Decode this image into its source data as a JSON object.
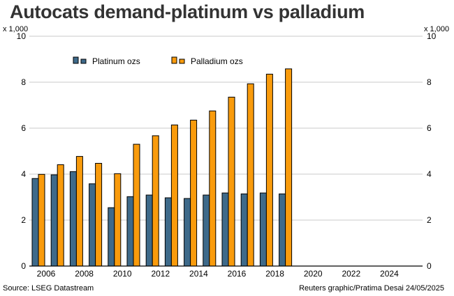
{
  "chart_data": {
    "type": "bar",
    "title": "Autocats demand-platinum vs palladium",
    "y_unit_left": "x 1,000",
    "y_unit_right": "x 1,000",
    "ylim": [
      0,
      10
    ],
    "yticks": [
      0,
      2,
      4,
      6,
      8,
      10
    ],
    "xlim": [
      2005,
      2025
    ],
    "xticks": [
      "2006",
      "2008",
      "2010",
      "2012",
      "2014",
      "2016",
      "2018",
      "2020",
      "2022",
      "2024"
    ],
    "categories": [
      "2005",
      "2006",
      "2007",
      "2008",
      "2009",
      "2010",
      "2011",
      "2012",
      "2013",
      "2014",
      "2015",
      "2016",
      "2017",
      "2018"
    ],
    "series": [
      {
        "name": "Platinum ozs",
        "color": "#3e6a8a",
        "values": [
          3.81,
          3.97,
          4.11,
          3.58,
          2.54,
          3.02,
          3.09,
          2.97,
          2.94,
          3.09,
          3.18,
          3.14,
          3.18,
          3.14
        ]
      },
      {
        "name": "Palladium ozs",
        "color": "#f99b0c",
        "values": [
          3.99,
          4.41,
          4.77,
          4.47,
          4.02,
          5.3,
          5.67,
          6.14,
          6.35,
          6.75,
          7.35,
          7.93,
          8.35,
          8.58
        ]
      }
    ],
    "grid": true,
    "legend": "top-left",
    "source": "Source: LSEG Datastream",
    "credit": "Reuters graphic/Pratima Desai 24/05/2025"
  }
}
